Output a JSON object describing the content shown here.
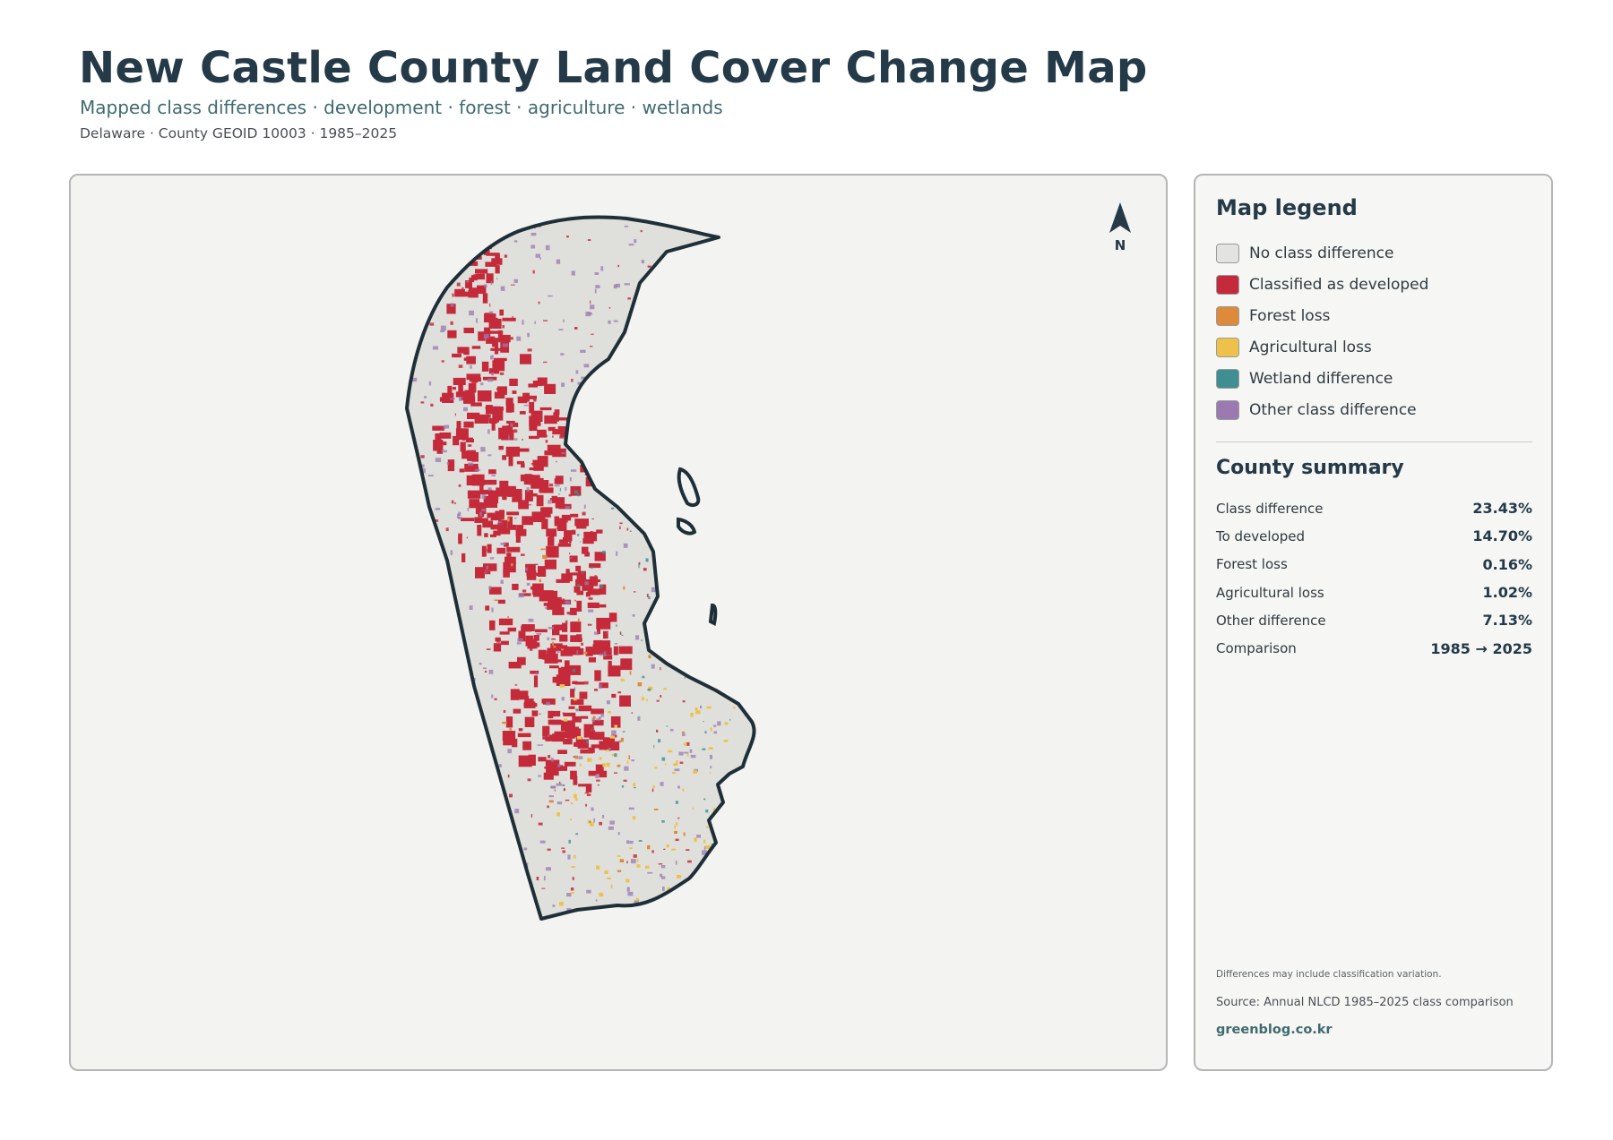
{
  "header": {
    "title": "New Castle County Land Cover Change Map",
    "subtitle": "Mapped class differences · development · forest · agriculture · wetlands",
    "meta": "Delaware · County GEOID 10003 · 1985–2025"
  },
  "map": {
    "north_label": "N",
    "icon": "north-arrow-icon",
    "colors": {
      "background": "#f3f3f1",
      "county_fill": "#dfdfdb",
      "boundary": "#1f2f38",
      "developed": "#c42a3a",
      "forest_loss": "#dd8a3a",
      "agricultural_loss": "#eec24a",
      "wetland": "#3f8f92",
      "other": "#9a7ab0"
    }
  },
  "legend": {
    "title": "Map legend",
    "items": [
      {
        "label": "No class difference",
        "color": "#e3e3e1"
      },
      {
        "label": "Classified as developed",
        "color": "#c42a3a"
      },
      {
        "label": "Forest loss",
        "color": "#dd8a3a"
      },
      {
        "label": "Agricultural loss",
        "color": "#eec24a"
      },
      {
        "label": "Wetland difference",
        "color": "#3f8f92"
      },
      {
        "label": "Other class difference",
        "color": "#9a7ab0"
      }
    ]
  },
  "summary": {
    "title": "County summary",
    "rows": [
      {
        "key": "Class difference",
        "value": "23.43%"
      },
      {
        "key": "To developed",
        "value": "14.70%"
      },
      {
        "key": "Forest loss",
        "value": "0.16%"
      },
      {
        "key": "Agricultural loss",
        "value": "1.02%"
      },
      {
        "key": "Other difference",
        "value": "7.13%"
      },
      {
        "key": "Comparison",
        "value": "1985 → 2025"
      }
    ]
  },
  "footer": {
    "note": "Differences may include classification variation.",
    "source": "Source: Annual NLCD 1985–2025 class comparison",
    "site": "greenblog.co.kr"
  }
}
